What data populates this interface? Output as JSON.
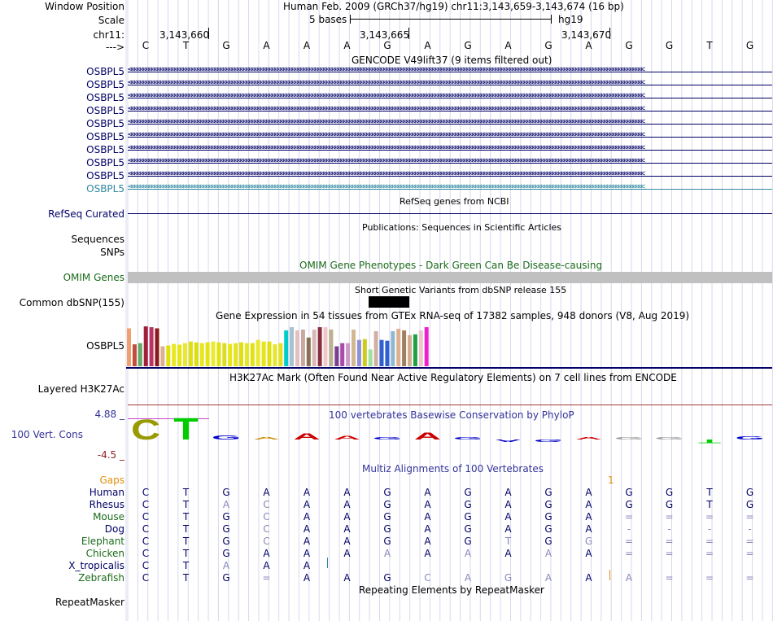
{
  "header": {
    "window_position_label": "Window Position",
    "window_position": "Human Feb. 2009 (GRCh37/hg19)   chr11:3,143,659-3,143,674 (16 bp)",
    "scale_label": "Scale",
    "scale_text": "5 bases",
    "scale_db": "hg19",
    "chrom_label": "chr11:",
    "ticks": [
      "3,143,660",
      "3,143,665",
      "3,143,670"
    ],
    "strand_label": "--->",
    "bases": [
      "C",
      "T",
      "G",
      "A",
      "A",
      "A",
      "G",
      "A",
      "G",
      "A",
      "G",
      "A",
      "G",
      "G",
      "T",
      "G"
    ]
  },
  "gencode": {
    "title": "GENCODE V49lift37 (9 items filtered out)",
    "genes": [
      "OSBPL5",
      "OSBPL5",
      "OSBPL5",
      "OSBPL5",
      "OSBPL5",
      "OSBPL5",
      "OSBPL5",
      "OSBPL5",
      "OSBPL5",
      "OSBPL5"
    ]
  },
  "refseq": {
    "title": "RefSeq genes from NCBI",
    "label": "RefSeq Curated"
  },
  "publications": {
    "title": "Publications: Sequences in Scientific Articles",
    "label1": "Sequences",
    "label2": "SNPs"
  },
  "omim": {
    "title": "OMIM Gene Phenotypes - Dark Green Can Be Disease-causing",
    "label": "OMIM Genes"
  },
  "dbsnp": {
    "title": "Short Genetic Variants from dbSNP release 155",
    "label": "Common dbSNP(155)"
  },
  "gtex": {
    "title": "Gene Expression in 54 tissues from GTEx RNA-seq of 17382 samples, 948 donors (V8, Aug 2019)",
    "label": "OSBPL5",
    "values": [
      0.95,
      0.55,
      0.58,
      1.0,
      0.98,
      0.95,
      0.5,
      0.52,
      0.56,
      0.54,
      0.58,
      0.62,
      0.6,
      0.58,
      0.6,
      0.62,
      0.6,
      0.58,
      0.56,
      0.58,
      0.6,
      0.58,
      0.58,
      0.66,
      0.62,
      0.62,
      0.55,
      0.58,
      0.9,
      0.98,
      0.9,
      0.92,
      0.72,
      0.92,
      0.98,
      0.98,
      0.92,
      0.5,
      0.58,
      0.58,
      0.92,
      0.66,
      0.68,
      0.42,
      0.88,
      0.66,
      0.64,
      0.88,
      0.94,
      0.9,
      0.78,
      0.8,
      0.9,
      0.98
    ],
    "colors": [
      "#eea070",
      "#c0503a",
      "#66aa66",
      "#a0203a",
      "#bb3366",
      "#8a1a1a",
      "#dcb090",
      "#e0e010",
      "#e8e820",
      "#e6e610",
      "#e8e830",
      "#e0e010",
      "#dddd10",
      "#e6e622",
      "#e4e414",
      "#eaea30",
      "#e2e210",
      "#dddd20",
      "#e6e618",
      "#e4e420",
      "#e0e010",
      "#e6e628",
      "#e2e210",
      "#e8e830",
      "#e4e418",
      "#e0e010",
      "#e6e630",
      "#e2e220",
      "#00cccc",
      "#a8c0d0",
      "#e2c0c0",
      "#c8a8a0",
      "#8a7050",
      "#d8b8b8",
      "#883040",
      "#f0c8c8",
      "#bbb090",
      "#7a4090",
      "#aa4aaa",
      "#cc99cc",
      "#d2b890",
      "#9090d8",
      "#cccc20",
      "#a0e0a0",
      "#d0b0a0",
      "#3060d0",
      "#3060d0",
      "#90b8d0",
      "#dcb090",
      "#a08060",
      "#d0b090",
      "#20a040",
      "#e8c8c8",
      "#ee22cc"
    ]
  },
  "h3k27ac": {
    "title": "H3K27Ac Mark (Often Found Near Active Regulatory Elements) on 7 cell lines from ENCODE",
    "label": "Layered H3K27Ac"
  },
  "phylop": {
    "title": "100 vertebrates Basewise Conservation by PhyloP",
    "label": "100 Vert. Cons",
    "max": "4.88 _",
    "min": "-4.5 _",
    "scores": [
      4.3,
      4.6,
      0.9,
      0.6,
      1.3,
      0.8,
      0.4,
      1.4,
      0.5,
      -0.2,
      -0.3,
      0.6,
      0,
      0,
      -0.8,
      0.7
    ],
    "colors": [
      "#999900",
      "#00cc00",
      "#0000cc",
      "#cc8800",
      "#cc0000",
      "#cc0000",
      "#0000cc",
      "#cc0000",
      "#0000cc",
      "#0000cc",
      "#0000cc",
      "#cc0000",
      "#999999",
      "#999999",
      "#00cc00",
      "#0000cc"
    ]
  },
  "multiz": {
    "title": "Multiz Alignments of 100 Vertebrates",
    "gaps_label": "Gaps",
    "gap_count": "1",
    "species": [
      {
        "name": "Human",
        "cls": "navy",
        "bases": [
          "C",
          "T",
          "G",
          "A",
          "A",
          "A",
          "G",
          "A",
          "G",
          "A",
          "G",
          "A",
          "G",
          "G",
          "T",
          "G"
        ]
      },
      {
        "name": "Rhesus",
        "cls": "navy",
        "bases": [
          "C",
          "T",
          "A",
          "C",
          "A",
          "A",
          "G",
          "A",
          "G",
          "A",
          "G",
          "A",
          "G",
          "G",
          "T",
          "G"
        ]
      },
      {
        "name": "Mouse",
        "cls": "darkgreen",
        "bases": [
          "C",
          "T",
          "G",
          "C",
          "A",
          "A",
          "G",
          "A",
          "G",
          "A",
          "G",
          "A",
          "=",
          "=",
          "=",
          "="
        ]
      },
      {
        "name": "Dog",
        "cls": "navy",
        "bases": [
          "C",
          "T",
          "G",
          "C",
          "A",
          "A",
          "G",
          "A",
          "G",
          "A",
          "G",
          "A",
          "-",
          "-",
          "-",
          "-"
        ]
      },
      {
        "name": "Elephant",
        "cls": "darkgreen",
        "bases": [
          "C",
          "T",
          "G",
          "C",
          "A",
          "A",
          "G",
          "A",
          "G",
          "T",
          "G",
          "G",
          "=",
          "=",
          "=",
          "="
        ]
      },
      {
        "name": "Chicken",
        "cls": "darkgreen",
        "bases": [
          "C",
          "T",
          "G",
          "A",
          "A",
          "A",
          "A",
          "A",
          "A",
          "A",
          "A",
          "A",
          "=",
          "=",
          "=",
          "="
        ]
      },
      {
        "name": "X_tropicalis",
        "cls": "navy",
        "bases": [
          "C",
          "T",
          "A",
          "A",
          "A",
          "",
          "",
          "",
          "",
          "",
          "",
          "",
          "",
          "",
          "",
          ""
        ]
      },
      {
        "name": "Zebrafish",
        "cls": "darkgreen",
        "bases": [
          "C",
          "T",
          "G",
          "=",
          "A",
          "A",
          "G",
          "C",
          "A",
          "G",
          "A",
          "A",
          "A",
          "=",
          "=",
          "="
        ]
      }
    ]
  },
  "repeatmasker": {
    "title": "Repeating Elements by RepeatMasker",
    "label": "RepeatMasker"
  }
}
